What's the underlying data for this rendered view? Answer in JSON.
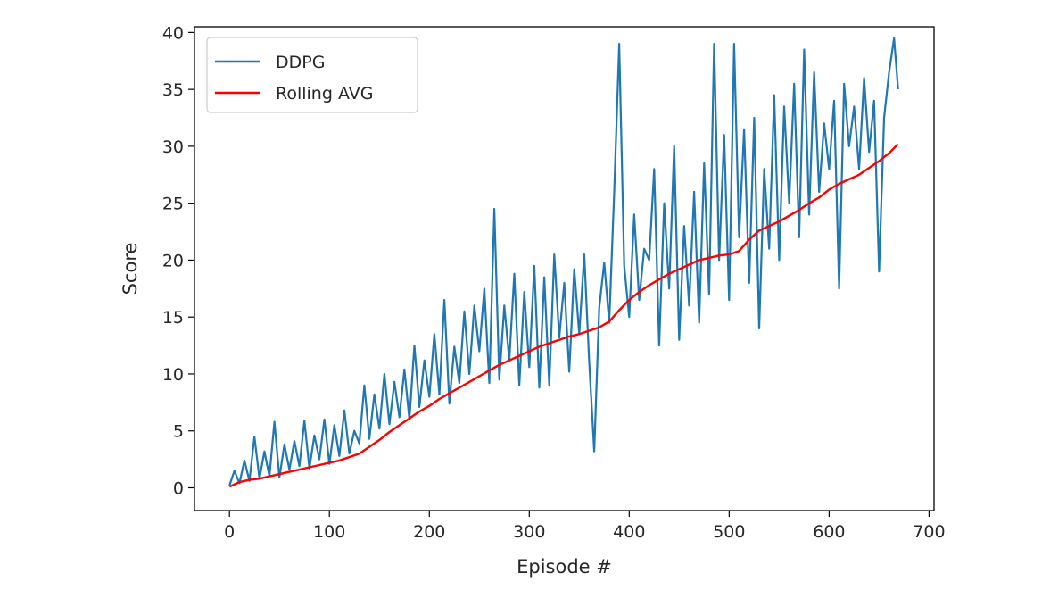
{
  "chart_data": {
    "type": "line",
    "title": "",
    "xlabel": "Episode #",
    "ylabel": "Score",
    "xlim": [
      -35,
      705
    ],
    "ylim": [
      -2,
      40.5
    ],
    "x_ticks": [
      0,
      100,
      200,
      300,
      400,
      500,
      600,
      700
    ],
    "y_ticks": [
      0,
      5,
      10,
      15,
      20,
      25,
      30,
      35,
      40
    ],
    "grid": false,
    "legend_position": "upper-left",
    "series": [
      {
        "name": "DDPG",
        "color": "#1f77b4",
        "x": [
          0,
          5,
          10,
          15,
          20,
          25,
          30,
          35,
          40,
          45,
          50,
          55,
          60,
          65,
          70,
          75,
          80,
          85,
          90,
          95,
          100,
          105,
          110,
          115,
          120,
          125,
          130,
          135,
          140,
          145,
          150,
          155,
          160,
          165,
          170,
          175,
          180,
          185,
          190,
          195,
          200,
          205,
          210,
          215,
          220,
          225,
          230,
          235,
          240,
          245,
          250,
          255,
          260,
          265,
          270,
          275,
          280,
          285,
          290,
          295,
          300,
          305,
          310,
          315,
          320,
          325,
          330,
          335,
          340,
          345,
          350,
          355,
          360,
          365,
          370,
          375,
          380,
          385,
          390,
          395,
          400,
          405,
          410,
          415,
          420,
          425,
          430,
          435,
          440,
          445,
          450,
          455,
          460,
          465,
          470,
          475,
          480,
          485,
          490,
          495,
          500,
          505,
          510,
          515,
          520,
          525,
          530,
          535,
          540,
          545,
          550,
          555,
          560,
          565,
          570,
          575,
          580,
          585,
          590,
          595,
          600,
          605,
          610,
          615,
          620,
          625,
          630,
          635,
          640,
          645,
          650,
          655,
          660,
          665,
          669
        ],
        "values": [
          0.2,
          1.5,
          0.4,
          2.4,
          0.6,
          4.5,
          0.8,
          3.2,
          1.0,
          5.8,
          0.9,
          3.8,
          1.6,
          4.1,
          1.9,
          5.9,
          1.7,
          4.6,
          2.5,
          6.0,
          2.1,
          5.5,
          2.8,
          6.8,
          3.0,
          5.0,
          3.9,
          9.0,
          4.3,
          8.2,
          5.2,
          10.0,
          5.6,
          9.3,
          6.2,
          10.4,
          6.0,
          12.5,
          7.1,
          11.2,
          8.0,
          13.5,
          8.2,
          16.5,
          7.4,
          12.4,
          9.2,
          15.5,
          10.0,
          16.0,
          12.0,
          17.5,
          9.2,
          24.5,
          9.5,
          16.0,
          11.2,
          18.8,
          9.0,
          17.2,
          10.6,
          19.5,
          8.8,
          18.5,
          9.0,
          20.5,
          13.2,
          18.0,
          10.2,
          19.2,
          13.5,
          20.5,
          11.0,
          3.2,
          15.8,
          19.8,
          14.5,
          26.0,
          39.0,
          19.5,
          15.0,
          24.0,
          16.5,
          21.0,
          20.0,
          28.0,
          12.5,
          25.0,
          17.5,
          30.0,
          13.0,
          23.0,
          16.0,
          26.0,
          14.5,
          28.5,
          17.0,
          39.0,
          20.0,
          31.0,
          16.5,
          39.0,
          22.0,
          31.5,
          18.0,
          32.5,
          14.0,
          28.0,
          21.0,
          34.5,
          20.0,
          33.5,
          25.0,
          35.5,
          22.0,
          38.5,
          24.0,
          36.5,
          26.0,
          32.0,
          28.0,
          34.0,
          17.5,
          35.5,
          30.0,
          33.5,
          28.0,
          36.0,
          29.5,
          34.0,
          19.0,
          32.5,
          36.5,
          39.5,
          35.0
        ]
      },
      {
        "name": "Rolling AVG",
        "color": "#ff0000",
        "x": [
          0,
          10,
          20,
          30,
          40,
          50,
          60,
          70,
          80,
          90,
          100,
          110,
          120,
          130,
          140,
          150,
          160,
          170,
          180,
          190,
          200,
          210,
          220,
          230,
          240,
          250,
          260,
          270,
          280,
          290,
          300,
          310,
          320,
          330,
          340,
          350,
          360,
          370,
          380,
          390,
          400,
          410,
          420,
          430,
          440,
          450,
          460,
          470,
          480,
          490,
          500,
          510,
          520,
          530,
          540,
          550,
          560,
          570,
          580,
          590,
          600,
          610,
          620,
          630,
          640,
          650,
          660,
          669
        ],
        "values": [
          0.1,
          0.5,
          0.7,
          0.8,
          1.0,
          1.2,
          1.4,
          1.6,
          1.8,
          2.0,
          2.2,
          2.4,
          2.7,
          3.0,
          3.6,
          4.2,
          4.9,
          5.5,
          6.1,
          6.7,
          7.2,
          7.8,
          8.3,
          8.8,
          9.3,
          9.8,
          10.3,
          10.8,
          11.2,
          11.6,
          12.0,
          12.4,
          12.7,
          13.0,
          13.3,
          13.5,
          13.8,
          14.1,
          14.6,
          15.6,
          16.5,
          17.2,
          17.8,
          18.3,
          18.8,
          19.2,
          19.6,
          20.0,
          20.2,
          20.4,
          20.5,
          20.8,
          21.8,
          22.6,
          23.0,
          23.4,
          23.9,
          24.4,
          25.0,
          25.5,
          26.2,
          26.7,
          27.1,
          27.5,
          28.1,
          28.7,
          29.4,
          30.2
        ]
      }
    ]
  }
}
